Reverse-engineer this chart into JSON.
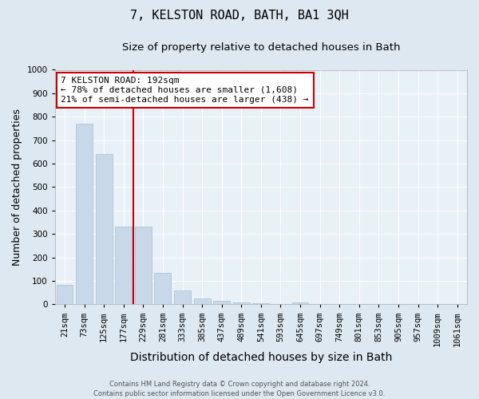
{
  "title": "7, KELSTON ROAD, BATH, BA1 3QH",
  "subtitle": "Size of property relative to detached houses in Bath",
  "xlabel": "Distribution of detached houses by size in Bath",
  "ylabel": "Number of detached properties",
  "footer": "Contains HM Land Registry data © Crown copyright and database right 2024.\nContains public sector information licensed under the Open Government Licence v3.0.",
  "categories": [
    "21sqm",
    "73sqm",
    "125sqm",
    "177sqm",
    "229sqm",
    "281sqm",
    "333sqm",
    "385sqm",
    "437sqm",
    "489sqm",
    "541sqm",
    "593sqm",
    "645sqm",
    "697sqm",
    "749sqm",
    "801sqm",
    "853sqm",
    "905sqm",
    "957sqm",
    "1009sqm",
    "1061sqm"
  ],
  "values": [
    82,
    770,
    640,
    330,
    330,
    135,
    58,
    25,
    15,
    8,
    5,
    0,
    8,
    0,
    0,
    0,
    0,
    0,
    0,
    0,
    0
  ],
  "bar_color": "#c8d8e8",
  "bar_edge_color": "#a8bece",
  "vline_pos": 3.5,
  "vline_color": "#cc0000",
  "annotation_text": "7 KELSTON ROAD: 192sqm\n← 78% of detached houses are smaller (1,608)\n21% of semi-detached houses are larger (438) →",
  "annotation_box_color": "#ffffff",
  "annotation_box_edge_color": "#cc0000",
  "ylim": [
    0,
    1000
  ],
  "yticks": [
    0,
    100,
    200,
    300,
    400,
    500,
    600,
    700,
    800,
    900,
    1000
  ],
  "bg_color": "#dde8f0",
  "plot_bg_color": "#e8f0f8",
  "title_fontsize": 11,
  "subtitle_fontsize": 9.5,
  "xlabel_fontsize": 10,
  "ylabel_fontsize": 9,
  "tick_fontsize": 7.5,
  "annotation_fontsize": 8,
  "footer_fontsize": 6
}
